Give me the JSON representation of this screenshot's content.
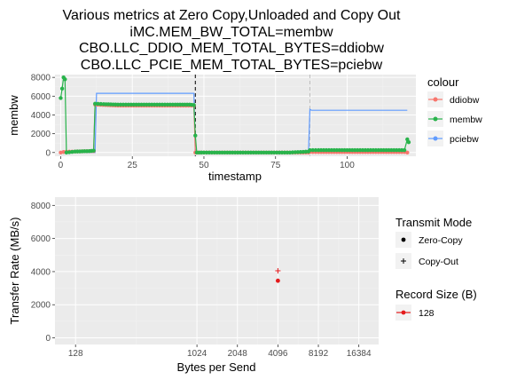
{
  "title_lines": [
    "Various metrics at Zero Copy,Unloaded and Copy Out",
    "iMC.MEM_BW_TOTAL=membw",
    "CBO.LLC_DDIO_MEM_TOTAL_BYTES=ddiobw",
    "CBO.LLC_PCIE_MEM_TOTAL_BYTES=pciebw"
  ],
  "colors": {
    "panel_bg": "#ebebeb",
    "ddiobw": "#f8766d",
    "membw": "#28b34b",
    "pciebw": "#619cff",
    "record_128": "#e41a1c"
  },
  "chart_data": [
    {
      "type": "line",
      "xlabel": "timestamp",
      "ylabel": "membw",
      "xlim": [
        -2,
        124
      ],
      "ylim": [
        -400,
        8300
      ],
      "x_ticks": [
        0,
        25,
        50,
        75,
        100,
        125
      ],
      "y_ticks": [
        0,
        2000,
        4000,
        6000,
        8000
      ],
      "x_tick_labels": [
        "0",
        "25",
        "50",
        "75",
        "100",
        "125"
      ],
      "y_tick_labels": [
        "0",
        "2000",
        "4000",
        "6000",
        "8000"
      ],
      "vlines": [
        {
          "x": 47,
          "style": "dashed",
          "color": "#000000"
        },
        {
          "x": 87,
          "style": "dashed",
          "color": "#bdbdbd"
        }
      ],
      "legend": {
        "title": "colour",
        "position": "right",
        "entries": [
          "ddiobw",
          "membw",
          "pciebw"
        ]
      },
      "series": [
        {
          "name": "ddiobw",
          "x": [
            0,
            1,
            2,
            5,
            10,
            11.5,
            12,
            20,
            30,
            40,
            46.5,
            47,
            50,
            60,
            70,
            80,
            86.5,
            87,
            90,
            100,
            110,
            120,
            121
          ],
          "y": [
            0,
            50,
            80,
            100,
            150,
            150,
            5100,
            5000,
            5000,
            5000,
            5000,
            0,
            0,
            0,
            0,
            0,
            0,
            50,
            50,
            50,
            50,
            50,
            0
          ]
        },
        {
          "name": "membw",
          "x": [
            0,
            0.5,
            1,
            1.5,
            2,
            5,
            10,
            11.5,
            12,
            15,
            20,
            30,
            40,
            45,
            46.5,
            47,
            47.5,
            50,
            60,
            70,
            80,
            86.5,
            87,
            90,
            100,
            110,
            120,
            121,
            121.5
          ],
          "y": [
            5800,
            6800,
            8000,
            7800,
            0,
            100,
            150,
            200,
            5200,
            5150,
            5100,
            5100,
            5100,
            5100,
            5050,
            1800,
            0,
            0,
            0,
            0,
            0,
            100,
            250,
            250,
            250,
            250,
            250,
            1400,
            1100
          ]
        },
        {
          "name": "pciebw",
          "x": [
            0,
            12,
            12.5,
            20,
            30,
            40,
            46.5,
            47,
            86.5,
            87,
            87.5,
            100,
            110,
            121
          ],
          "y": [
            0,
            0,
            6300,
            6300,
            6300,
            6300,
            6300,
            0,
            0,
            4600,
            4500,
            4500,
            4500,
            4500
          ]
        }
      ]
    },
    {
      "type": "scatter",
      "xlabel": "Bytes per Send",
      "ylabel": "Transfer Rate (MB/s)",
      "x_scale": "log2",
      "xlim": [
        90,
        23000
      ],
      "ylim": [
        -400,
        8500
      ],
      "x_ticks": [
        128,
        1024,
        2048,
        4096,
        8192,
        16384
      ],
      "y_ticks": [
        0,
        2000,
        4000,
        6000,
        8000
      ],
      "x_tick_labels": [
        "128",
        "1024",
        "2048",
        "4096",
        "8192",
        "16384"
      ],
      "y_tick_labels": [
        "0",
        "2000",
        "4000",
        "6000",
        "8000"
      ],
      "legends": [
        {
          "title": "Transmit Mode",
          "entries": [
            "Zero-Copy",
            "Copy-Out"
          ]
        },
        {
          "title": "Record Size (B)",
          "entries": [
            "128"
          ]
        }
      ],
      "points": [
        {
          "mode": "Zero-Copy",
          "record_size": "128",
          "x": 4096,
          "y": 3450
        },
        {
          "mode": "Copy-Out",
          "record_size": "128",
          "x": 4096,
          "y": 4050
        }
      ]
    }
  ]
}
